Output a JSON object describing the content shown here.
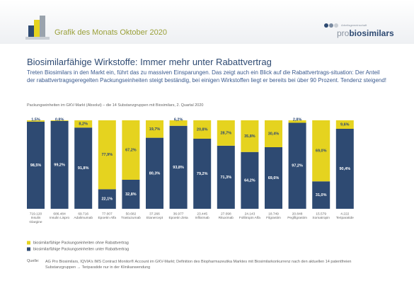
{
  "header": {
    "title": "Grafik des Monats Oktober 2020",
    "logo_small": "Arbeitsgemeinschaft",
    "logo_pro": "pro",
    "logo_main": "biosimilars"
  },
  "chart_data": {
    "type": "bar",
    "stacked": true,
    "title": "Biosimilarfähige Wirkstoffe: Immer mehr unter Rabattvertrag",
    "subtitle": "Treten Biosimilars in den Markt ein, führt das zu massiven Einsparungen. Das zeigt auch ein Blick auf die Rabattvertrags-situation: Der Anteil der rabattvertragsgeregelten Packungseinheiten steigt beständig, bei einigen Wirkstoffen liegt er bereits bei über 90 Prozent. Tendenz steigend!",
    "caption": "Packungseinheiten im GKV-Markt (Absolut) – die 14 Substanzgruppen mit Biosimilars, 2. Quartal 2020",
    "categories": [
      "Insulin Glargine",
      "Insulin Lispro",
      "Adalimumab",
      "Epoetin Alfa",
      "Trastuzumab",
      "Etanercept",
      "Epoetin Zeta",
      "Infliximab",
      "Rituximab",
      "Follitropin Alfa",
      "Filgrastim",
      "Pegfilgrastim",
      "Somatropin",
      "Teriparatide"
    ],
    "series": [
      {
        "name": "biosimilarfähige Packungseinheiten unter Rabattvertrag",
        "color": "#2e4a72",
        "label_color": "#ffffff",
        "values": [
          98.5,
          99.2,
          91.8,
          22.1,
          32.8,
          80.3,
          93.8,
          79.2,
          71.3,
          64.2,
          69.6,
          97.2,
          31.0,
          90.4
        ],
        "value_labels": [
          "98,5%",
          "99,2%",
          "91,8%",
          "22,1%",
          "32,8%",
          "80,3%",
          "93,8%",
          "79,2%",
          "71,3%",
          "64,2%",
          "69,6%",
          "97,2%",
          "31,0%",
          "90,4%"
        ]
      },
      {
        "name": "biosimilarfähige Packungseinheiten ohne Rabattvertrag",
        "color": "#e5d31f",
        "label_color": "#2e4a72",
        "values": [
          1.5,
          0.8,
          8.2,
          77.9,
          67.2,
          19.7,
          6.2,
          20.8,
          28.7,
          35.8,
          30.4,
          2.8,
          69.0,
          9.6
        ],
        "value_labels": [
          "1,5%",
          "0,8%",
          "8,2%",
          "77,9%",
          "67,2%",
          "19,7%",
          "6,2%",
          "20,8%",
          "28,7%",
          "35,8%",
          "30,4%",
          "2,8%",
          "69,0%",
          "9,6%"
        ]
      }
    ],
    "totals": {
      "values": [
        719120,
        686484,
        69716,
        77007,
        50682,
        37266,
        36977,
        23445,
        27098,
        24143,
        18749,
        20848,
        15579,
        4222
      ],
      "value_labels": [
        "719.120",
        "686.484",
        "69.716",
        "77.007",
        "50.682",
        "37.266",
        "36.977",
        "23.445",
        "27.098",
        "24.143",
        "18.749",
        "20.848",
        "15.579",
        "4.222"
      ]
    },
    "legend_order": [
      1,
      0
    ],
    "source_label": "Quelle:",
    "source": "AG Pro Biosimilars, IQVIA's IMS Contract Monitor® Account im GKV-Markt; Definition des Biopharmazeutika Marktes mit Biosimilarkonkurrenz nach den aktuellen 14 patentfreien Substanzgruppen → Teriparatide nur in der Klinikanwendung"
  }
}
